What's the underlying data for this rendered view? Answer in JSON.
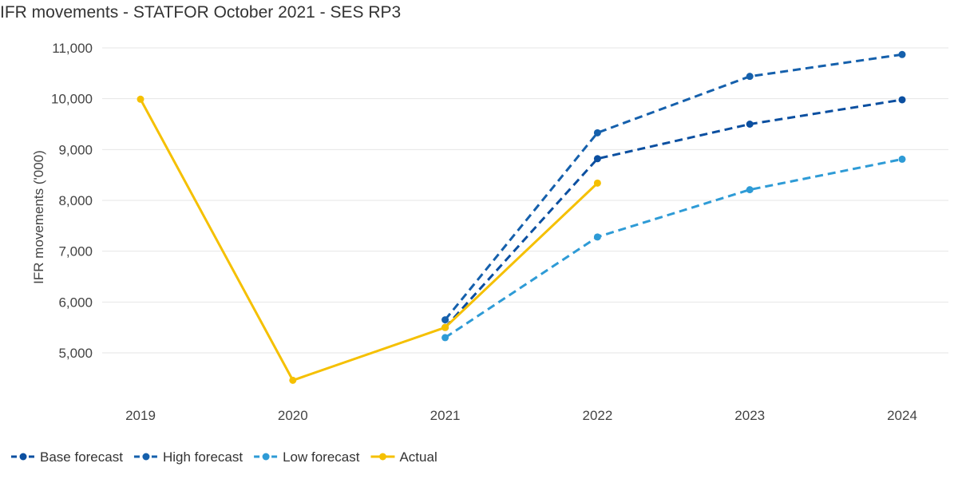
{
  "chart_data": {
    "type": "line",
    "title": "IFR movements - STATFOR October 2021 - SES RP3",
    "xlabel": "",
    "ylabel": "IFR movements ('000)",
    "categories": [
      "2019",
      "2020",
      "2021",
      "2022",
      "2023",
      "2024"
    ],
    "ylim": [
      4000,
      11000
    ],
    "yticks": [
      5000,
      6000,
      7000,
      8000,
      9000,
      10000,
      11000
    ],
    "ytick_labels": [
      "5,000",
      "6,000",
      "7,000",
      "8,000",
      "9,000",
      "10,000",
      "11,000"
    ],
    "grid": true,
    "legend_position": "bottom-left",
    "series": [
      {
        "name": "Base forecast",
        "values": [
          null,
          null,
          5500,
          8820,
          9500,
          9980
        ],
        "color": "#0b4fa0",
        "dashed": true
      },
      {
        "name": "High forecast",
        "values": [
          null,
          null,
          5650,
          9330,
          10440,
          10870
        ],
        "color": "#1560ac",
        "dashed": true
      },
      {
        "name": "Low forecast",
        "values": [
          null,
          null,
          5300,
          7280,
          8210,
          8810
        ],
        "color": "#2e9bd6",
        "dashed": true
      },
      {
        "name": "Actual",
        "values": [
          9990,
          4460,
          5500,
          8340,
          null,
          null
        ],
        "color": "#f5c000",
        "dashed": false
      }
    ]
  }
}
